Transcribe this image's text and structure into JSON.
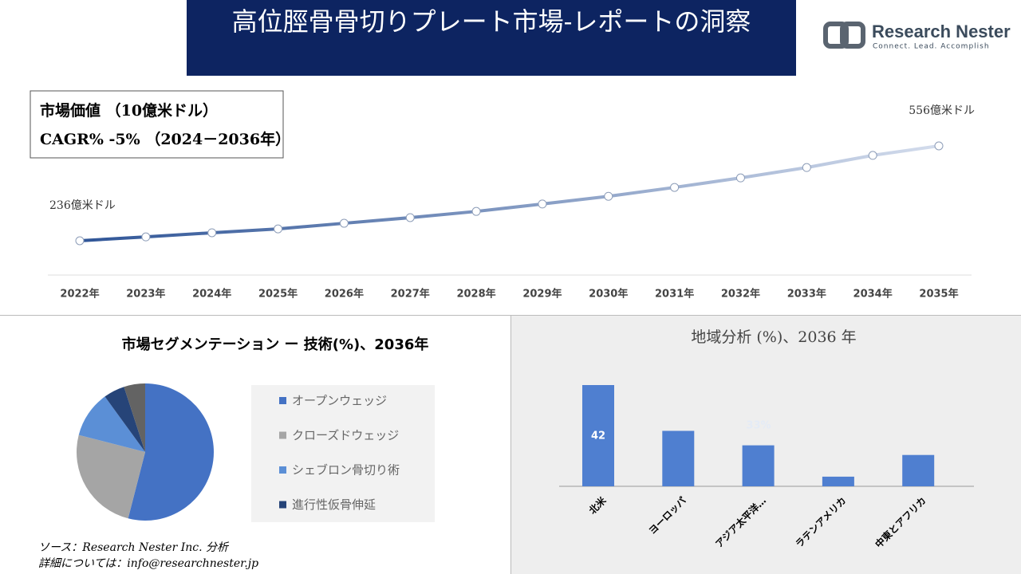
{
  "header": {
    "title": "高位脛骨骨切りプレート市場‐レポートの洞察",
    "logo_name": "Research Nester",
    "logo_tagline": "Connect. Lead. Accomplish"
  },
  "chart_data": [
    {
      "type": "line",
      "box_lines": [
        "市場価値 （10億米ドル）",
        "CAGR% -5% （2024－2036年）"
      ],
      "annotations": [
        "236億米ドル",
        "556億米ドル"
      ],
      "categories": [
        "2022年",
        "2023年",
        "2024年",
        "2025年",
        "2026年",
        "2027年",
        "2028年",
        "2029年",
        "2030年",
        "2031年",
        "2032年",
        "2033年",
        "2034年",
        "2035年"
      ],
      "values": [
        236,
        249,
        263,
        276,
        295,
        314,
        335,
        360,
        386,
        416,
        448,
        483,
        524,
        556
      ],
      "color": "#2f5597"
    },
    {
      "type": "pie",
      "title": "市場セグメンテーション ー 技術(%)、2036年",
      "categories": [
        "オープンウェッジ",
        "クローズドウェッジ",
        "シェブロン骨切り術",
        "進行性仮骨伸延",
        null
      ],
      "values": [
        54,
        25,
        11,
        5,
        5
      ],
      "colors": [
        "#4472c4",
        "#a5a5a5",
        "#5b8fd6",
        "#264478",
        "#636363"
      ]
    },
    {
      "type": "bar",
      "title": "地域分析 (%)、2036 年",
      "categories": [
        "北米",
        "ヨーロッパ",
        "アジア太平洋…",
        "ラテンアメリカ",
        "中東とアフリカ"
      ],
      "values": [
        42,
        23,
        17,
        4,
        13
      ],
      "value_labels": [
        "42",
        null,
        null,
        null,
        null
      ],
      "annotations": [
        "33%"
      ],
      "color": "#4f7fd0"
    }
  ],
  "footer": {
    "source": "ソース：Research Nester Inc. 分析",
    "contact": "詳細については：info@researchnester.jp"
  }
}
